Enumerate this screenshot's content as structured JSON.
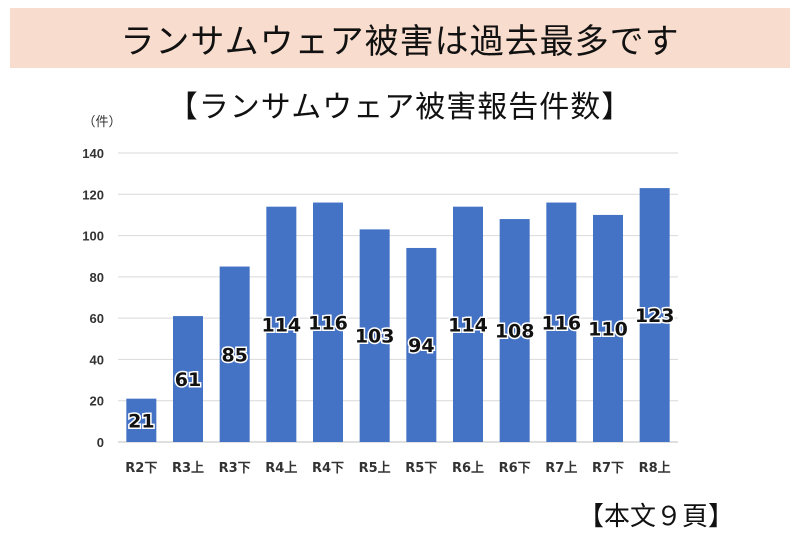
{
  "banner": {
    "title": "ランサムウェア被害は過去最多です"
  },
  "page_ref": "【本文９頁】",
  "colors": {
    "banner_bg": "#f8dccd",
    "bar": "#4472c4",
    "grid": "#d9d9d9"
  },
  "chart_data": {
    "type": "bar",
    "title": "【ランサムウェア被害報告件数】",
    "unit_label": "（件）",
    "categories": [
      "R2下",
      "R3上",
      "R3下",
      "R4上",
      "R4下",
      "R5上",
      "R5下",
      "R6上",
      "R6下",
      "R7上",
      "R7下",
      "R8上"
    ],
    "values": [
      21,
      61,
      85,
      114,
      116,
      103,
      94,
      114,
      108,
      116,
      110,
      123
    ],
    "data_labels": [
      "21",
      "61",
      "85",
      "114",
      "116",
      "103",
      "94",
      "114",
      "108",
      "116",
      "110",
      "123"
    ],
    "yticks": [
      0,
      20,
      40,
      60,
      80,
      100,
      120,
      140
    ],
    "ylim": [
      0,
      140
    ],
    "grid": true,
    "legend": "none"
  }
}
